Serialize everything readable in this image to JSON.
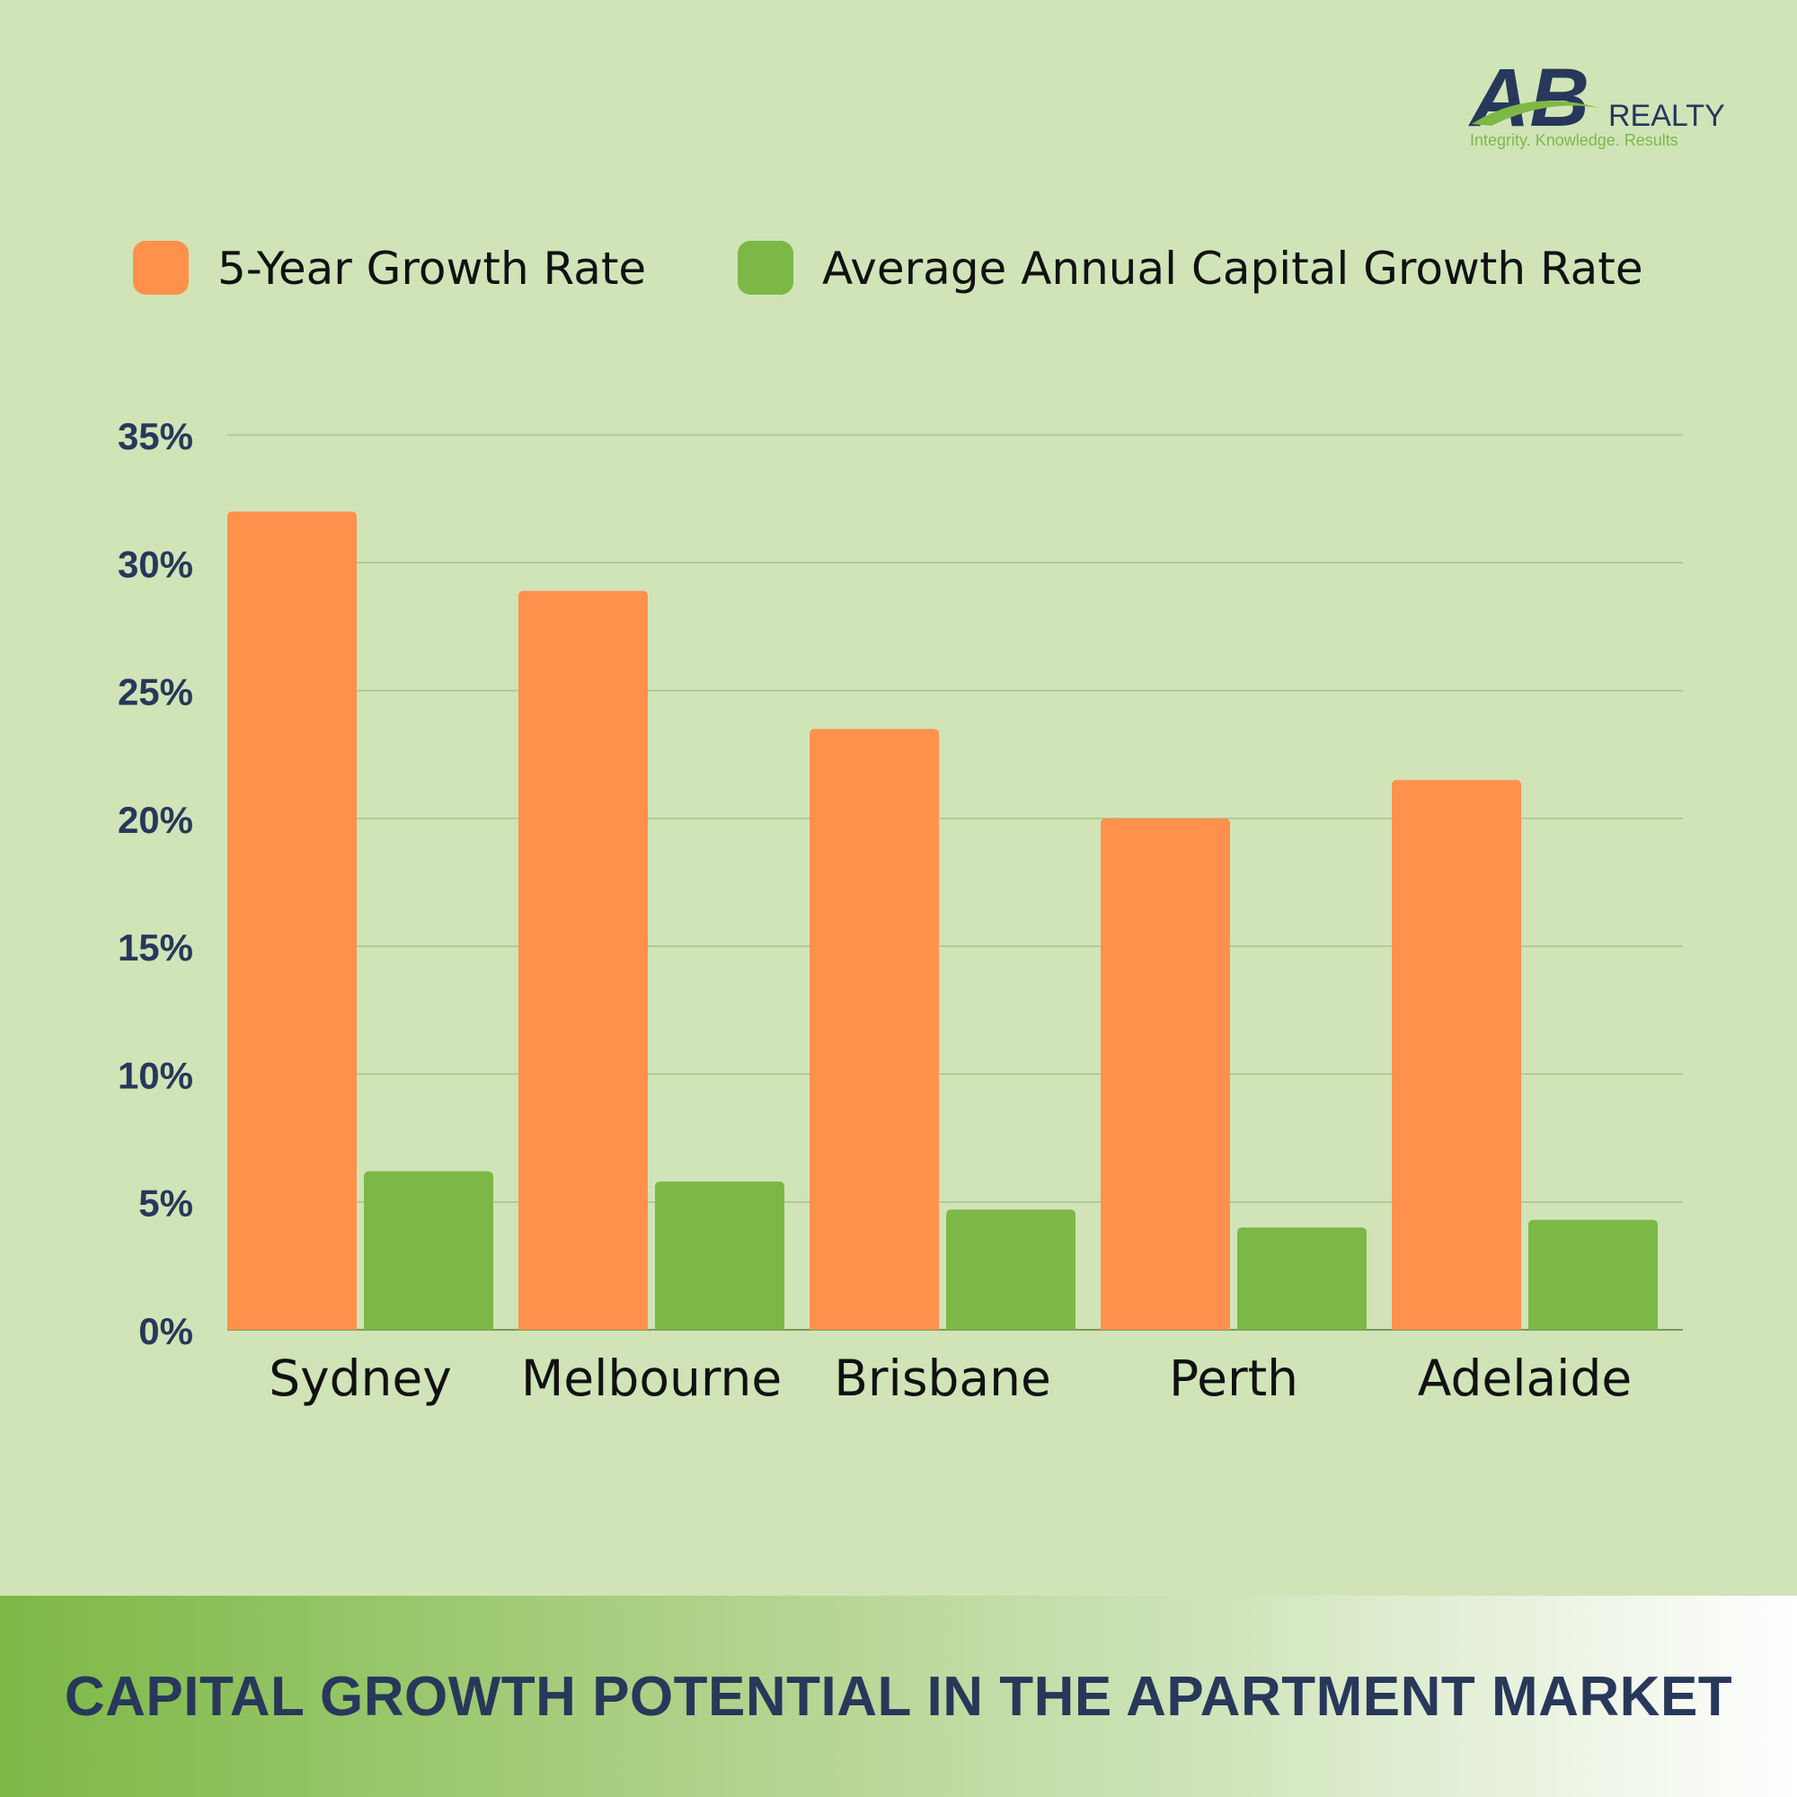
{
  "logo": {
    "mark": "AB",
    "word": "REALTY",
    "tagline": "Integrity. Knowledge. Results"
  },
  "colors": {
    "background": "#d0e4b8",
    "orange": "#ff914d",
    "green": "#7db846",
    "navy": "#27385a",
    "gridline": "#a9c38d"
  },
  "footer": {
    "title": "CAPITAL GROWTH POTENTIAL IN THE APARTMENT MARKET"
  },
  "chart_data": {
    "type": "bar",
    "title": "",
    "xlabel": "",
    "ylabel": "",
    "categories": [
      "Sydney",
      "Melbourne",
      "Brisbane",
      "Perth",
      "Adelaide"
    ],
    "series": [
      {
        "name": "5-Year Growth Rate",
        "color": "#ff914d",
        "values": [
          32,
          28.9,
          23.5,
          20,
          21.5
        ]
      },
      {
        "name": "Average Annual Capital Growth Rate",
        "color": "#7db846",
        "values": [
          6.2,
          5.8,
          4.7,
          4.0,
          4.3
        ]
      }
    ],
    "ylim": [
      0,
      35
    ],
    "yticks": [
      0,
      5,
      10,
      15,
      20,
      25,
      30,
      35
    ],
    "ytick_labels": [
      "0%",
      "5%",
      "10%",
      "15%",
      "20%",
      "25%",
      "30%",
      "35%"
    ],
    "grid": true,
    "legend_position": "top"
  }
}
